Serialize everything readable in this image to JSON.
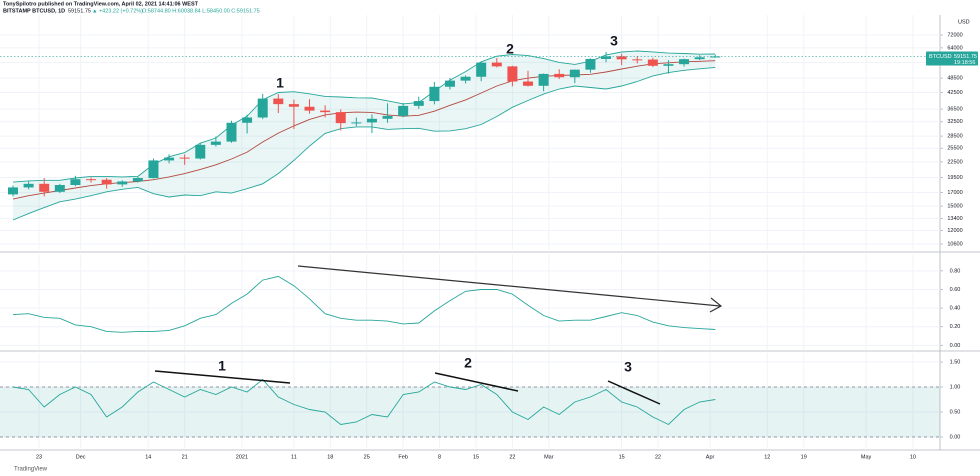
{
  "header": {
    "publisher": "TonySpilotro published on TradingView.com, April 02, 2021 14:41:06 WEST",
    "symbol": "BITSTAMP BTCUSD, 1D",
    "change": "▲ +423.22 (+0.72%)",
    "ohlc": "O:58744.80 H:60038.84 L:58450.00 C:59151.75"
  },
  "footer": "TradingView",
  "chart_data": [
    {
      "type": "candlestick",
      "log_scale": true,
      "grid": true,
      "currency": "USD",
      "symbol_tag": "BTCUSD",
      "last_price": 59151.75,
      "countdown": "19:18:56",
      "up_color": "#26a69a",
      "down_color": "#ef5350",
      "band_color": "#26a69a",
      "middle_color": "#b5473f",
      "xlim": [
        -46.5,
        134.2
      ],
      "xticks": [
        {
          "value": -39,
          "label": "23"
        },
        {
          "value": -31,
          "label": "Dec"
        },
        {
          "value": -18,
          "label": "14"
        },
        {
          "value": -11,
          "label": "21"
        },
        {
          "value": 0,
          "label": "2021"
        },
        {
          "value": 10,
          "label": "11"
        },
        {
          "value": 17,
          "label": "18"
        },
        {
          "value": 24,
          "label": "25"
        },
        {
          "value": 31,
          "label": "Feb"
        },
        {
          "value": 38,
          "label": "8"
        },
        {
          "value": 45,
          "label": "15"
        },
        {
          "value": 52,
          "label": "22"
        },
        {
          "value": 59,
          "label": "Mar"
        },
        {
          "value": 73,
          "label": "15"
        },
        {
          "value": 80,
          "label": "22"
        },
        {
          "value": 90,
          "label": "Apr"
        },
        {
          "value": 101,
          "label": "12"
        },
        {
          "value": 108,
          "label": "19"
        },
        {
          "value": 120,
          "label": "May"
        },
        {
          "value": 129,
          "label": "10"
        }
      ],
      "ylim": [
        10030,
        86500
      ],
      "yticks": [
        72000,
        64000,
        56000,
        48500,
        42500,
        36500,
        32500,
        28500,
        25500,
        22500,
        19500,
        17000,
        15000,
        13400,
        12000,
        10600
      ],
      "annotations": [
        "1",
        "2",
        "3"
      ],
      "x": [
        -44,
        -41,
        -38,
        -35,
        -32,
        -29,
        -26,
        -23,
        -20,
        -17,
        -14,
        -11,
        -8,
        -5,
        -2,
        1,
        4,
        7,
        10,
        13,
        16,
        19,
        22,
        25,
        28,
        31,
        34,
        37,
        40,
        43,
        46,
        49,
        52,
        55,
        58,
        61,
        64,
        67,
        70,
        73,
        76,
        79,
        82,
        85,
        88,
        91
      ],
      "open": [
        16700,
        17800,
        18400,
        17100,
        18200,
        19200,
        19100,
        18300,
        18800,
        19400,
        22800,
        23400,
        23200,
        26300,
        27100,
        32200,
        33800,
        40200,
        38200,
        37300,
        36000,
        35500,
        32100,
        32300,
        33400,
        34300,
        37600,
        39300,
        44800,
        47400,
        49100,
        55900,
        54000,
        47000,
        45200,
        50400,
        48900,
        52400,
        57800,
        59200,
        57600,
        57500,
        54300,
        55100,
        57700,
        58700
      ],
      "high": [
        18100,
        18800,
        19400,
        18400,
        19800,
        19500,
        19400,
        19000,
        19600,
        23200,
        24100,
        24100,
        26800,
        28400,
        32800,
        34700,
        41900,
        41900,
        39800,
        40000,
        37800,
        36400,
        33800,
        34800,
        38500,
        38600,
        40900,
        46800,
        48600,
        49700,
        56300,
        58300,
        54300,
        51900,
        50600,
        52600,
        52500,
        58100,
        61700,
        60600,
        59400,
        58400,
        57200,
        58000,
        59800,
        60038.84
      ],
      "low": [
        16400,
        17500,
        16400,
        16900,
        18000,
        18600,
        17600,
        17900,
        18600,
        19300,
        22200,
        21900,
        23000,
        25900,
        26800,
        29200,
        33300,
        35200,
        30400,
        35000,
        33800,
        30000,
        31200,
        29300,
        32200,
        33900,
        36600,
        38100,
        43700,
        46200,
        47100,
        53500,
        45000,
        44900,
        43000,
        48100,
        46300,
        50900,
        56100,
        54600,
        55500,
        53700,
        50500,
        53900,
        57200,
        58450
      ],
      "close": [
        17800,
        18400,
        17100,
        18200,
        19200,
        19100,
        18300,
        18800,
        19400,
        22800,
        23400,
        23200,
        26300,
        27100,
        32200,
        33800,
        40200,
        38200,
        37300,
        36000,
        35500,
        32100,
        32300,
        33400,
        34300,
        37600,
        39300,
        44800,
        47400,
        49100,
        55900,
        54000,
        47000,
        45200,
        50400,
        48900,
        52400,
        57800,
        59200,
        57600,
        57500,
        54300,
        55100,
        57700,
        58700,
        59151.75
      ],
      "upper": [
        18700,
        18900,
        19000,
        19000,
        19400,
        19700,
        19700,
        19600,
        19700,
        22000,
        23600,
        24500,
        26700,
        28000,
        31500,
        34200,
        39800,
        42500,
        42800,
        42000,
        41000,
        40800,
        40500,
        40400,
        39400,
        38300,
        38800,
        43000,
        47600,
        51500,
        56300,
        59300,
        60200,
        59600,
        58000,
        56000,
        55000,
        56600,
        60000,
        61600,
        62200,
        61700,
        61000,
        60800,
        60400,
        60500
      ],
      "middle": [
        16000,
        16500,
        16900,
        17300,
        17700,
        18100,
        18400,
        18600,
        18800,
        19100,
        19600,
        20200,
        21000,
        21900,
        23100,
        24600,
        27000,
        29300,
        31300,
        33200,
        34600,
        35300,
        35500,
        35400,
        34600,
        34200,
        34500,
        35800,
        37800,
        39700,
        42300,
        45100,
        47300,
        48500,
        49300,
        49700,
        49900,
        50200,
        51300,
        52700,
        54100,
        55300,
        55800,
        56300,
        56600,
        56900
      ],
      "lower": [
        13200,
        14000,
        14800,
        15600,
        16000,
        16500,
        17100,
        17500,
        17800,
        16800,
        16300,
        16600,
        16500,
        17100,
        16900,
        17600,
        18400,
        20200,
        22800,
        26000,
        29200,
        30500,
        31000,
        31000,
        30300,
        30500,
        30600,
        29800,
        29900,
        30500,
        31700,
        34100,
        37100,
        39500,
        41900,
        43900,
        45100,
        44500,
        43900,
        45100,
        47000,
        49500,
        51000,
        52100,
        52800,
        53500
      ]
    },
    {
      "type": "line",
      "color": "#26a69a",
      "ylim": [
        -0.05,
        0.97
      ],
      "yticks": [
        {
          "value": 0.8,
          "label": "0.80"
        },
        {
          "value": 0.6,
          "label": "0.60"
        },
        {
          "value": 0.4,
          "label": "0.40"
        },
        {
          "value": 0.2,
          "label": "0.20"
        },
        {
          "value": 0,
          "label": "0.00"
        }
      ],
      "values": [
        0.33,
        0.34,
        0.3,
        0.29,
        0.22,
        0.2,
        0.15,
        0.14,
        0.15,
        0.15,
        0.16,
        0.21,
        0.29,
        0.33,
        0.45,
        0.55,
        0.7,
        0.74,
        0.64,
        0.5,
        0.34,
        0.29,
        0.27,
        0.27,
        0.26,
        0.23,
        0.24,
        0.37,
        0.48,
        0.58,
        0.6,
        0.6,
        0.55,
        0.43,
        0.32,
        0.26,
        0.27,
        0.27,
        0.31,
        0.35,
        0.32,
        0.25,
        0.21,
        0.19,
        0.18,
        0.17
      ]
    },
    {
      "type": "line",
      "color": "#26a69a",
      "band": [
        0,
        1
      ],
      "ylim": [
        -0.22,
        1.68
      ],
      "yticks": [
        {
          "value": 1.5,
          "label": "1.50"
        },
        {
          "value": 1,
          "label": "1.00"
        },
        {
          "value": 0.5,
          "label": "0.50"
        },
        {
          "value": 0,
          "label": "0.00"
        }
      ],
      "annotations": [
        "1",
        "2",
        "3"
      ],
      "values": [
        1.0,
        0.95,
        0.6,
        0.85,
        1.0,
        0.85,
        0.4,
        0.6,
        0.9,
        1.1,
        0.95,
        0.8,
        0.95,
        0.85,
        1.0,
        0.9,
        1.15,
        0.8,
        0.65,
        0.55,
        0.5,
        0.25,
        0.3,
        0.45,
        0.4,
        0.85,
        0.9,
        1.1,
        1.0,
        0.95,
        1.05,
        0.85,
        0.5,
        0.35,
        0.6,
        0.45,
        0.7,
        0.8,
        0.95,
        0.7,
        0.6,
        0.4,
        0.25,
        0.55,
        0.7,
        0.75
      ]
    }
  ]
}
